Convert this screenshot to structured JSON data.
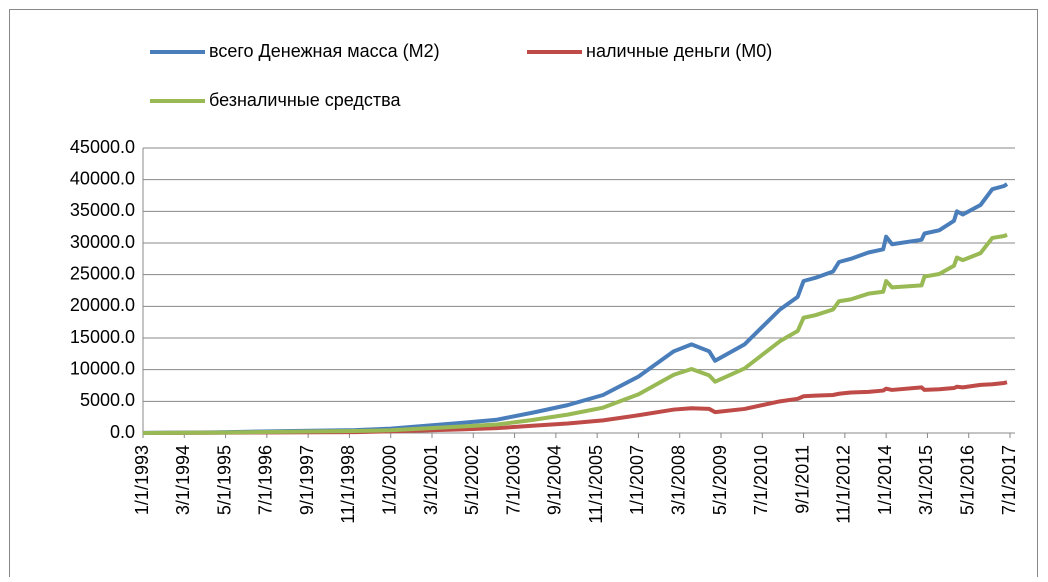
{
  "chart_data": {
    "type": "line",
    "x": [
      "1/1/1993",
      "1/1/1995",
      "1/1/1997",
      "1/1/1999",
      "1/1/2000",
      "1/1/2001",
      "1/1/2002",
      "1/1/2003",
      "1/1/2004",
      "1/1/2005",
      "1/1/2006",
      "1/1/2007",
      "1/1/2008",
      "7/1/2008",
      "1/1/2009",
      "3/1/2009",
      "1/1/2010",
      "1/1/2011",
      "7/1/2011",
      "9/1/2011",
      "1/1/2012",
      "7/1/2012",
      "9/1/2012",
      "1/1/2013",
      "7/1/2013",
      "12/1/2013",
      "1/1/2014",
      "3/1/2014",
      "1/1/2015",
      "2/1/2015",
      "7/1/2015",
      "12/1/2015",
      "1/1/2016",
      "3/1/2016",
      "9/1/2016",
      "1/1/2017",
      "5/1/2017",
      "6/1/2017"
    ],
    "series": [
      {
        "name": "всего Денежная масса (М2)",
        "color": "#4a7ebb",
        "values": [
          10,
          100,
          300,
          450,
          700,
          1150,
          1600,
          2100,
          3200,
          4400,
          6000,
          8900,
          12900,
          14000,
          12900,
          11400,
          14000,
          19500,
          21500,
          24000,
          24500,
          25500,
          27000,
          27500,
          28500,
          29000,
          31000,
          29800,
          30500,
          31500,
          32000,
          33500,
          35000,
          34500,
          36000,
          38500,
          39000,
          39300
        ]
      },
      {
        "name": "наличные деньги (М0)",
        "color": "#be4b48",
        "values": [
          3,
          40,
          100,
          130,
          270,
          420,
          580,
          760,
          1150,
          1500,
          2000,
          2800,
          3700,
          3900,
          3800,
          3300,
          3800,
          5000,
          5400,
          5800,
          5900,
          6000,
          6200,
          6400,
          6500,
          6700,
          7000,
          6800,
          7200,
          6800,
          6900,
          7100,
          7300,
          7200,
          7600,
          7700,
          7900,
          8000
        ]
      },
      {
        "name": "безналичные средства",
        "color": "#98b954",
        "values": [
          7,
          60,
          200,
          320,
          430,
          730,
          1020,
          1340,
          2050,
          2900,
          4000,
          6100,
          9200,
          10100,
          9100,
          8100,
          10200,
          14500,
          16100,
          18200,
          18600,
          19500,
          20800,
          21100,
          22000,
          22300,
          24000,
          23000,
          23300,
          24700,
          25100,
          26400,
          27700,
          27300,
          28400,
          30800,
          31100,
          31300
        ]
      }
    ],
    "xlim": [
      "1/1/1993",
      "7/1/2017"
    ],
    "xticks": [
      "1/1/1993",
      "3/1/1994",
      "5/1/1995",
      "7/1/1996",
      "9/1/1997",
      "11/1/1998",
      "1/1/2000",
      "3/1/2001",
      "5/1/2002",
      "7/1/2003",
      "9/1/2004",
      "11/1/2005",
      "1/1/2007",
      "3/1/2008",
      "5/1/2009",
      "7/1/2010",
      "9/1/2011",
      "11/1/2012",
      "1/1/2014",
      "3/1/2015",
      "5/1/2016",
      "7/1/2017"
    ],
    "ylim": [
      0,
      45000
    ],
    "yticks": [
      {
        "value": 0,
        "label": "0.0"
      },
      {
        "value": 5000,
        "label": "5000.0"
      },
      {
        "value": 10000,
        "label": "10000.0"
      },
      {
        "value": 15000,
        "label": "15000.0"
      },
      {
        "value": 20000,
        "label": "20000.0"
      },
      {
        "value": 25000,
        "label": "25000.0"
      },
      {
        "value": 30000,
        "label": "30000.0"
      },
      {
        "value": 35000,
        "label": "35000.0"
      },
      {
        "value": 40000,
        "label": "40000.0"
      },
      {
        "value": 45000,
        "label": "45000.0"
      }
    ],
    "grid": true
  }
}
